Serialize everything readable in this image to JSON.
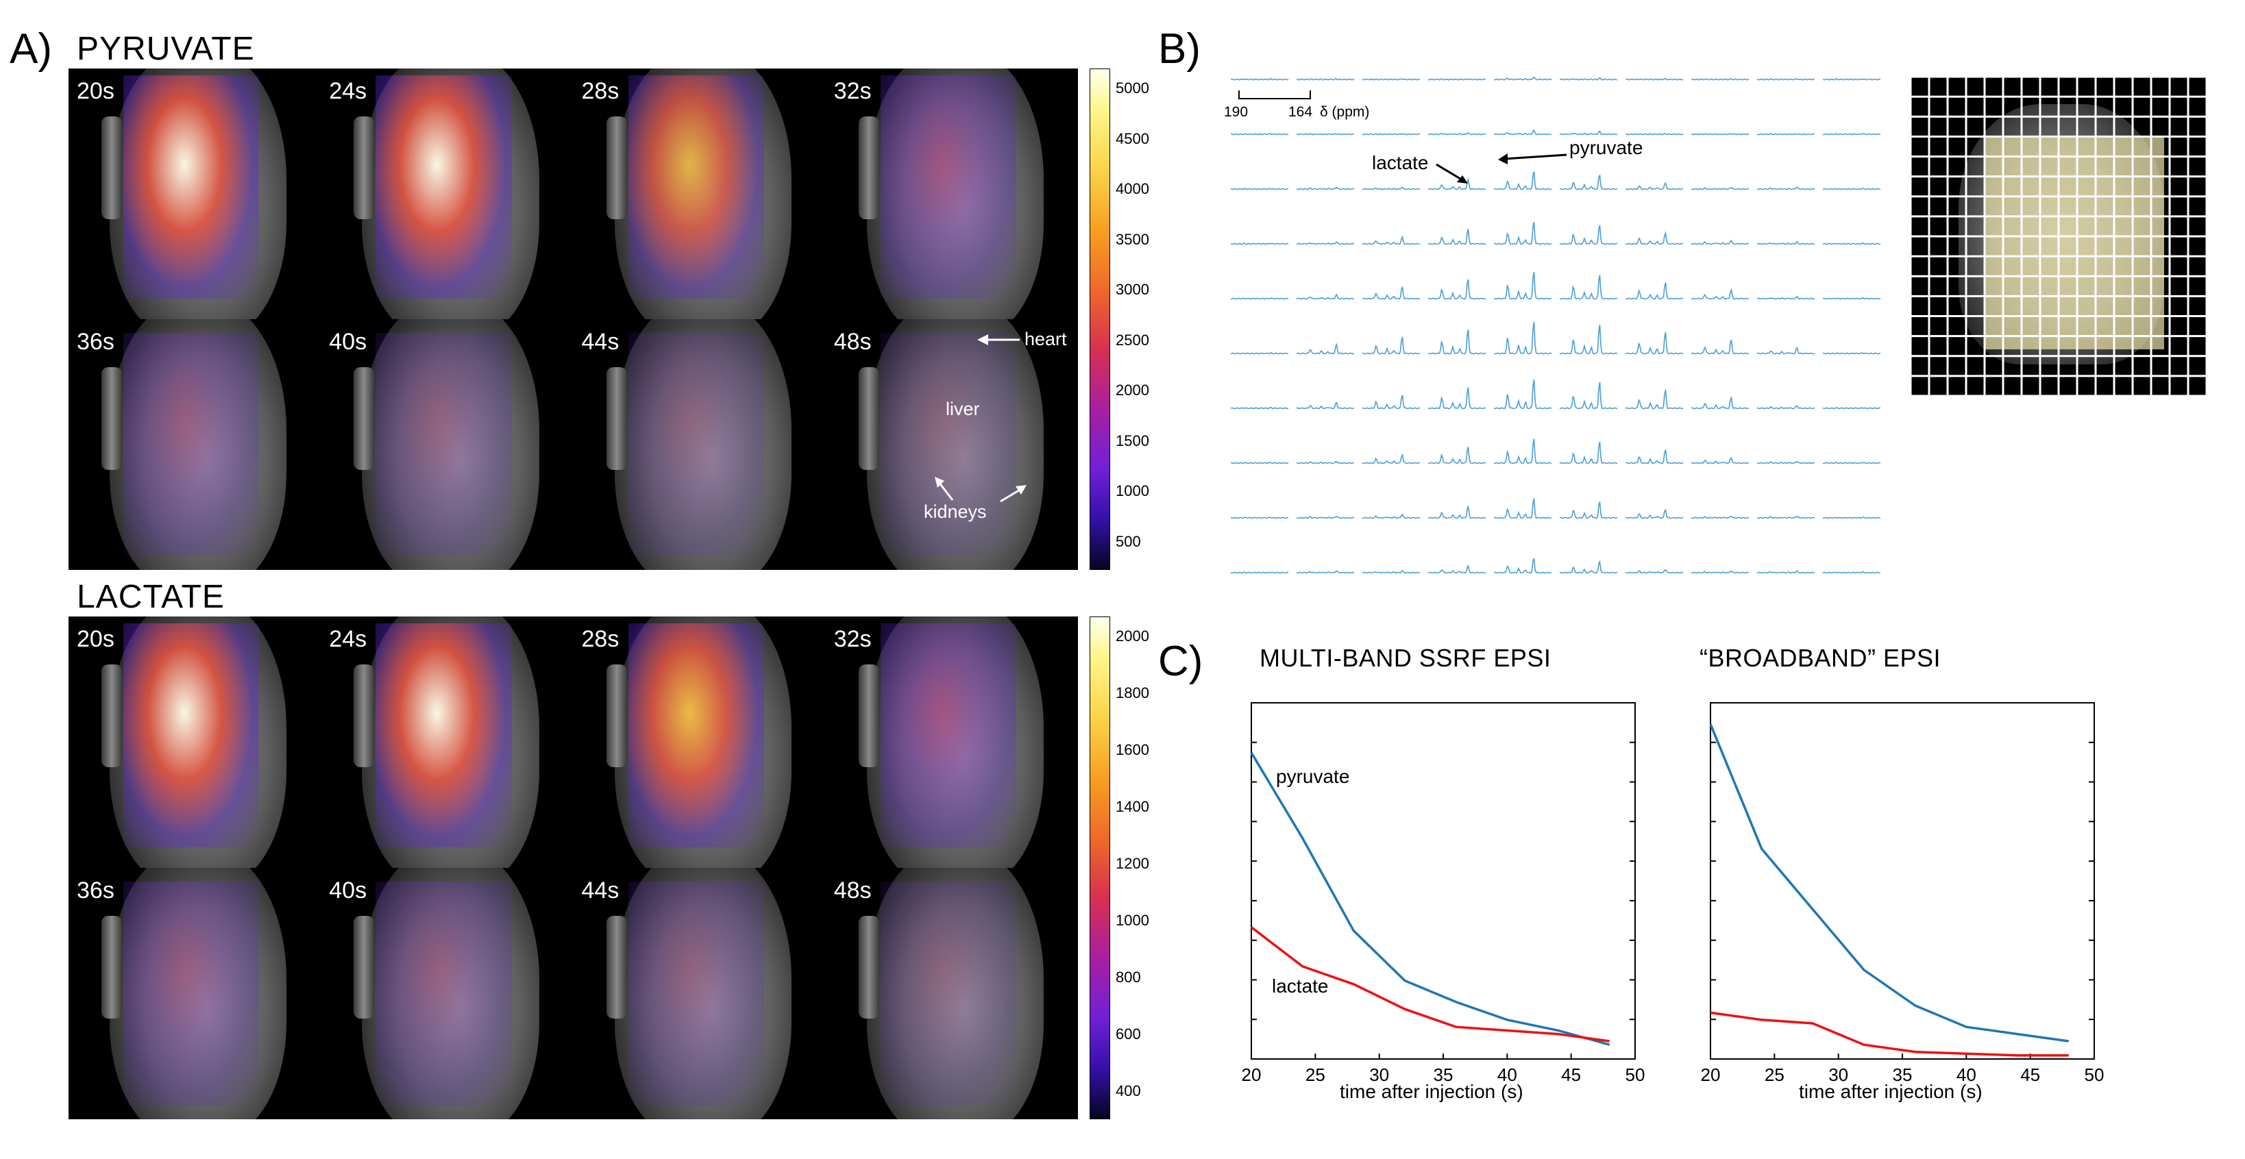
{
  "panel_a": {
    "letter": "A)",
    "pyruvate": {
      "title": "PYRUVATE",
      "times": [
        "20s",
        "24s",
        "28s",
        "32s",
        "36s",
        "40s",
        "44s",
        "48s"
      ],
      "intensity": [
        1.0,
        0.8,
        0.62,
        0.45,
        0.3,
        0.2,
        0.12,
        0.08
      ],
      "colorbar_ticks": [
        "5000",
        "4500",
        "4000",
        "3500",
        "3000",
        "2500",
        "2000",
        "1500",
        "1000",
        "500"
      ],
      "annotations": {
        "heart": "heart",
        "liver": "liver",
        "kidneys": "kidneys"
      }
    },
    "lactate": {
      "title": "LACTATE",
      "times": [
        "20s",
        "24s",
        "28s",
        "32s",
        "36s",
        "40s",
        "44s",
        "48s"
      ],
      "intensity": [
        1.0,
        0.85,
        0.7,
        0.5,
        0.32,
        0.26,
        0.2,
        0.1
      ],
      "colorbar_ticks": [
        "2000",
        "1800",
        "1600",
        "1400",
        "1200",
        "1000",
        "800",
        "600",
        "400"
      ]
    }
  },
  "panel_b": {
    "letter": "B)",
    "scale_left": "190",
    "scale_right": "164",
    "scale_unit": "δ (ppm)",
    "label_lactate": "lactate",
    "label_pyruvate": "pyruvate",
    "grid_rows": 10,
    "grid_cols": 10
  },
  "panel_c": {
    "letter": "C)",
    "chart_data": [
      {
        "type": "line",
        "title": "MULTI-BAND SSRF EPSI",
        "xlabel": "time after injection (s)",
        "ylabel": "",
        "xlim": [
          20,
          50
        ],
        "ylim": [
          0,
          1
        ],
        "xticks": [
          "20",
          "25",
          "30",
          "35",
          "40",
          "45",
          "50"
        ],
        "series": [
          {
            "name": "pyruvate",
            "color": "#1f77b4",
            "x": [
              20,
              24,
              28,
              32,
              36,
              40,
              44,
              48
            ],
            "y": [
              0.86,
              0.62,
              0.36,
              0.22,
              0.16,
              0.11,
              0.08,
              0.04
            ]
          },
          {
            "name": "lactate",
            "color": "#ee1111",
            "x": [
              20,
              24,
              28,
              32,
              36,
              40,
              44,
              48
            ],
            "y": [
              0.37,
              0.26,
              0.21,
              0.14,
              0.09,
              0.08,
              0.07,
              0.05
            ]
          }
        ]
      },
      {
        "type": "line",
        "title": "“BROADBAND” EPSI",
        "xlabel": "time after injection (s)",
        "ylabel": "",
        "xlim": [
          20,
          50
        ],
        "ylim": [
          0,
          1
        ],
        "xticks": [
          "20",
          "25",
          "30",
          "35",
          "40",
          "45",
          "50"
        ],
        "series": [
          {
            "name": "pyruvate",
            "color": "#1f77b4",
            "x": [
              20,
              24,
              28,
              32,
              36,
              40,
              44,
              48
            ],
            "y": [
              0.94,
              0.59,
              0.42,
              0.25,
              0.15,
              0.09,
              0.07,
              0.05
            ]
          },
          {
            "name": "lactate",
            "color": "#ee1111",
            "x": [
              20,
              24,
              28,
              32,
              36,
              40,
              44,
              48
            ],
            "y": [
              0.13,
              0.11,
              0.1,
              0.04,
              0.02,
              0.015,
              0.01,
              0.01
            ]
          }
        ]
      }
    ]
  }
}
